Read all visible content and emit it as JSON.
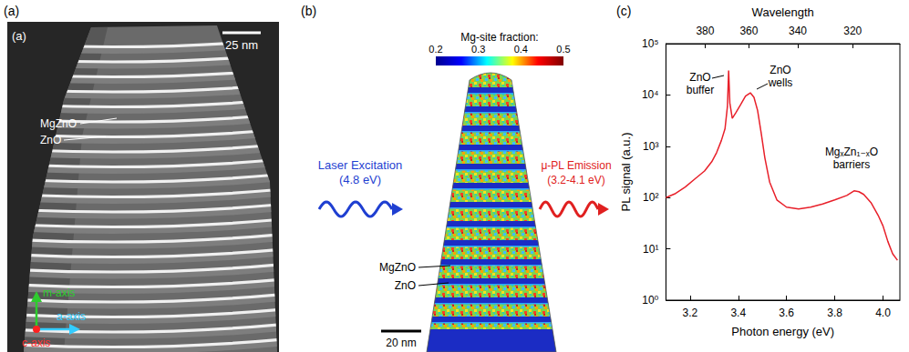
{
  "panel_a": {
    "letter": "(a)",
    "inset_letter": "(a)",
    "scale_bar": "25 nm",
    "layer_labels": [
      "MgZnO",
      "ZnO"
    ],
    "crystal_axes": [
      "m-axis",
      "a-axis",
      "c-axis"
    ]
  },
  "panel_b": {
    "letter": "(b)",
    "colorbar": {
      "title": "Mg-site fraction:",
      "range": [
        0.2,
        0.5
      ],
      "ticks": [
        0.2,
        0.3,
        0.4,
        0.5
      ]
    },
    "excitation": [
      "Laser Excitation",
      "(4.8 eV)"
    ],
    "emission": [
      "μ-PL Emission",
      "(3.2-4.1 eV)"
    ],
    "layer_labels": [
      "MgZnO",
      "ZnO"
    ],
    "scale_bar": "20 nm"
  },
  "panel_c": {
    "letter": "(c)"
  },
  "chart_data": {
    "type": "line",
    "x_label": "Photon energy (eV)",
    "y_label": "PL signal (a.u.)",
    "x2_label": "Wavelength",
    "x": [
      3.1,
      3.14,
      3.18,
      3.22,
      3.26,
      3.29,
      3.31,
      3.33,
      3.345,
      3.355,
      3.36,
      3.365,
      3.375,
      3.39,
      3.41,
      3.43,
      3.45,
      3.465,
      3.48,
      3.495,
      3.51,
      3.53,
      3.56,
      3.6,
      3.65,
      3.7,
      3.75,
      3.8,
      3.85,
      3.88,
      3.9,
      3.92,
      3.95,
      3.98,
      4.0,
      4.02,
      4.04,
      4.06
    ],
    "values": [
      100,
      120,
      160,
      230,
      330,
      500,
      750,
      1300,
      2200,
      6000,
      30000,
      7000,
      3500,
      4500,
      6500,
      9500,
      11000,
      9000,
      5000,
      1800,
      600,
      200,
      90,
      65,
      60,
      65,
      75,
      90,
      110,
      135,
      130,
      115,
      80,
      45,
      28,
      14,
      8,
      6
    ],
    "color": "#e8202a",
    "xlim": [
      3.1,
      4.07
    ],
    "xticks": [
      3.2,
      3.4,
      3.6,
      3.8,
      {
        "value": 4.0,
        "label": "4.0"
      }
    ],
    "x2ticks": [
      380,
      360,
      340,
      320
    ],
    "ylim": [
      1,
      100000
    ],
    "yticks": [
      {
        "value": 1,
        "label": "10⁰"
      },
      {
        "value": 10,
        "label": "10¹"
      },
      {
        "value": 100,
        "label": "10²"
      },
      {
        "value": 1000,
        "label": "10³"
      },
      {
        "value": 10000,
        "label": "10⁴"
      },
      {
        "value": 100000,
        "label": "10⁵"
      }
    ],
    "log": "y",
    "grid": false,
    "annotations": [
      "ZnO buffer",
      "ZnO wells",
      "MgₓZn₁₋ₓO barriers"
    ]
  }
}
